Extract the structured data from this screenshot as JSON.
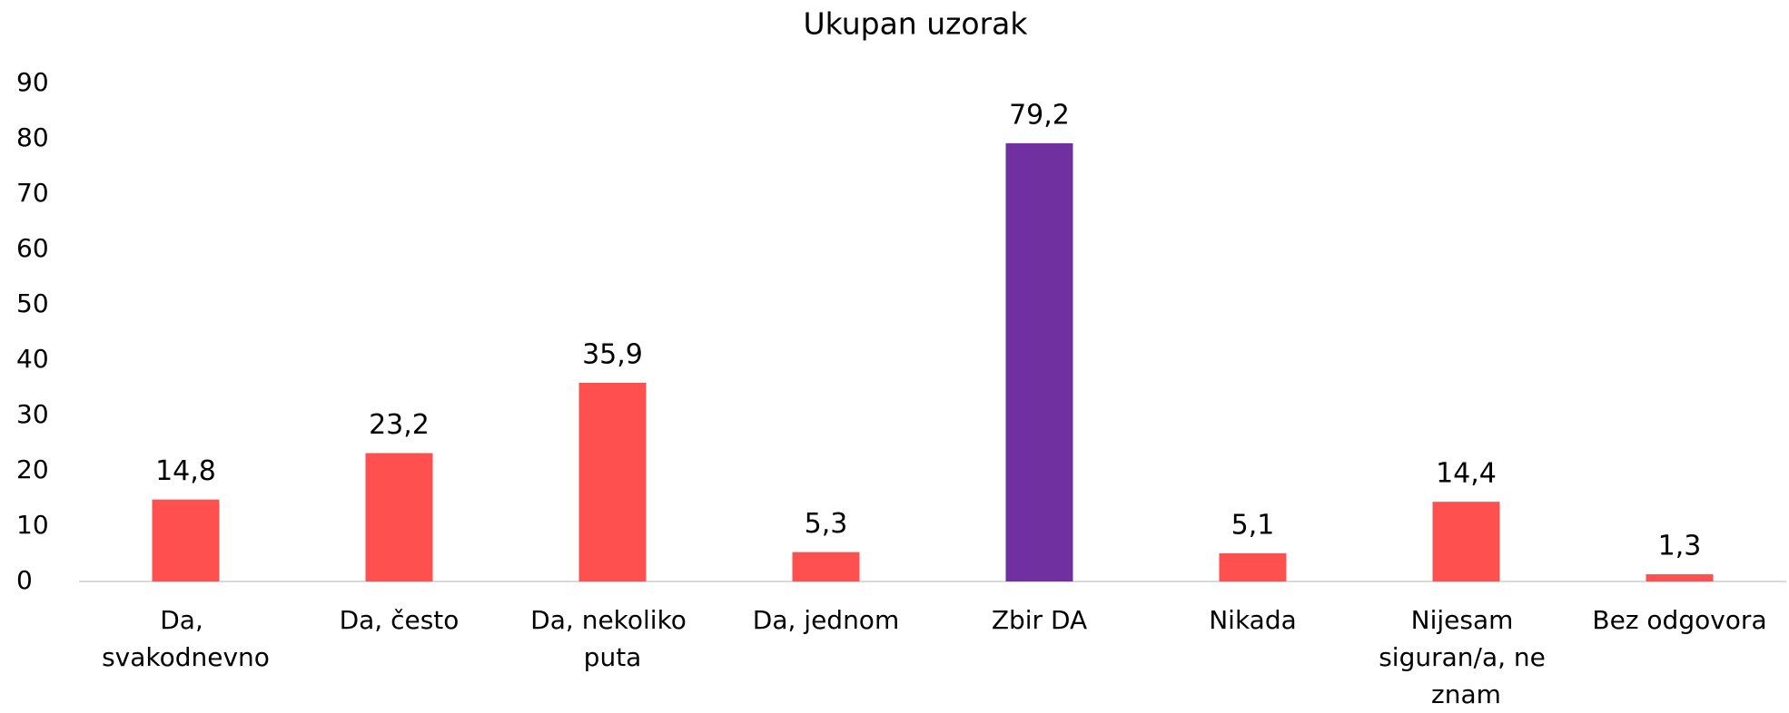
{
  "chart_data": {
    "type": "bar",
    "title": "Ukupan uzorak",
    "categories": [
      "Da, svakodnevno",
      "Da, često",
      "Da, nekoliko puta",
      "Da, jednom",
      "Zbir DA",
      "Nikada",
      "Nijesam siguran/a, ne znam",
      "Bez odgovora"
    ],
    "values": [
      14.8,
      23.2,
      35.9,
      5.3,
      79.2,
      5.1,
      14.4,
      1.3
    ],
    "value_labels": [
      "14,8",
      "23,2",
      "35,9",
      "5,3",
      "79,2",
      "5,1",
      "14,4",
      "1,3"
    ],
    "colors": [
      "#ff5050",
      "#ff5050",
      "#ff5050",
      "#ff5050",
      "#7030a0",
      "#ff5050",
      "#ff5050",
      "#ff5050"
    ],
    "ylim": [
      0,
      90
    ],
    "yticks": [
      0,
      10,
      20,
      30,
      40,
      50,
      60,
      70,
      80,
      90
    ],
    "grid": false
  }
}
